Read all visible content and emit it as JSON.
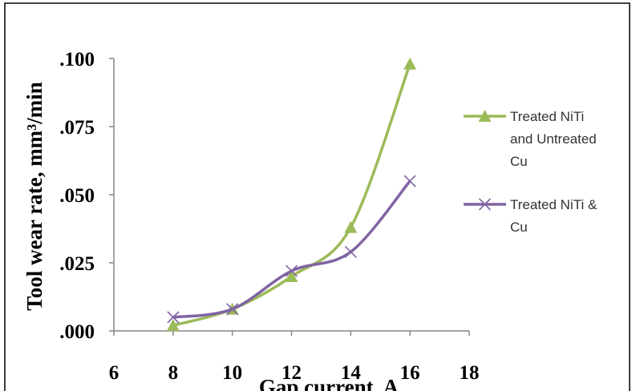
{
  "chart_data": {
    "type": "line",
    "xlabel": "Gap current, A",
    "ylabel": "Tool wear rate, mm³/min",
    "xlim": [
      6,
      18
    ],
    "ylim": [
      0,
      0.1
    ],
    "x_ticks": [
      "6",
      "8",
      "10",
      "12",
      "14",
      "16",
      "18"
    ],
    "y_ticks": [
      ".000",
      ".025",
      ".050",
      ".075",
      ".100"
    ],
    "grid": false,
    "legend_position": "right",
    "series": [
      {
        "name": "Treated NiTi and Untreated Cu",
        "legend_lines": [
          "Treated NiTi",
          "and Untreated",
          "Cu"
        ],
        "color": "#9bbb59",
        "marker": "triangle",
        "x": [
          8,
          10,
          12,
          14,
          16
        ],
        "y": [
          0.002,
          0.008,
          0.02,
          0.038,
          0.098
        ]
      },
      {
        "name": "Treated NiTi & Cu",
        "legend_lines": [
          "Treated NiTi &",
          "Cu"
        ],
        "color": "#8064a2",
        "marker": "x",
        "x": [
          8,
          10,
          12,
          14,
          16
        ],
        "y": [
          0.005,
          0.008,
          0.022,
          0.029,
          0.055
        ]
      }
    ]
  }
}
